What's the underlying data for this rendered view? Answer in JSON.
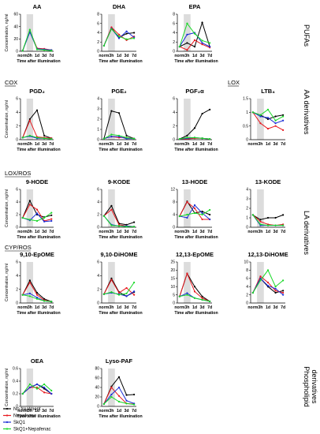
{
  "legend": [
    {
      "name": "No treatment",
      "color": "#000000"
    },
    {
      "name": "Nepafenac",
      "color": "#e8191f"
    },
    {
      "name": "SkQ1",
      "color": "#1c2fd6"
    },
    {
      "name": "SkQ1+Nepafenac",
      "color": "#19d928"
    }
  ],
  "section_labels": [
    "COX",
    "LOX",
    "LOX/ROS",
    "CYP/ROS"
  ],
  "group_labels": [
    "PUFAs",
    "AA derivatives",
    "LA derivatives",
    "Phospholipid derivatives"
  ],
  "chart_data": [
    {
      "type": "line",
      "title": "AA",
      "xlabel": "Time after illumination",
      "ylabel": "Concentration, ng/ml",
      "categories": [
        "norm",
        "3h",
        "1d",
        "3d",
        "7d"
      ],
      "ylim": [
        0,
        60
      ],
      "yticks": [
        0,
        20,
        40,
        60
      ],
      "shaded_category": "3h",
      "series": [
        {
          "name": "No treatment",
          "values": [
            1,
            33,
            4,
            3,
            2
          ]
        },
        {
          "name": "Nepafenac",
          "values": [
            1,
            33,
            5,
            4,
            2
          ]
        },
        {
          "name": "SkQ1",
          "values": [
            1,
            31,
            4,
            3,
            2
          ]
        },
        {
          "name": "SkQ1+Nepafenac",
          "values": [
            1,
            35,
            3,
            2,
            1
          ]
        }
      ]
    },
    {
      "type": "line",
      "title": "DHA",
      "xlabel": "Time after illumination",
      "ylabel": "",
      "categories": [
        "norm",
        "3h",
        "1d",
        "3d",
        "7d"
      ],
      "ylim": [
        0,
        8
      ],
      "yticks": [
        0,
        2,
        4,
        6,
        8
      ],
      "shaded_category": "3h",
      "series": [
        {
          "name": "No treatment",
          "values": [
            1.2,
            5.0,
            3.0,
            3.8,
            4.0
          ]
        },
        {
          "name": "Nepafenac",
          "values": [
            1.2,
            5.2,
            3.6,
            2.4,
            3.2
          ]
        },
        {
          "name": "SkQ1",
          "values": [
            1.2,
            4.9,
            2.8,
            4.3,
            3.0
          ]
        },
        {
          "name": "SkQ1+Nepafenac",
          "values": [
            1.2,
            4.8,
            3.2,
            2.6,
            2.8
          ]
        }
      ]
    },
    {
      "type": "line",
      "title": "EPA",
      "xlabel": "Time after illumination",
      "ylabel": "",
      "categories": [
        "norm",
        "3h",
        "1d",
        "3d",
        "7d"
      ],
      "ylim": [
        0,
        8
      ],
      "yticks": [
        0,
        2,
        4,
        6,
        8
      ],
      "shaded_category": "3h",
      "series": [
        {
          "name": "No treatment",
          "values": [
            1.0,
            1.8,
            1.0,
            6.2,
            1.0
          ]
        },
        {
          "name": "Nepafenac",
          "values": [
            1.0,
            0.3,
            2.4,
            1.5,
            0.8
          ]
        },
        {
          "name": "SkQ1",
          "values": [
            1.0,
            3.6,
            4.0,
            1.8,
            1.0
          ]
        },
        {
          "name": "SkQ1+Nepafenac",
          "values": [
            1.0,
            6.0,
            3.8,
            2.3,
            1.8
          ]
        }
      ]
    },
    {
      "type": "line",
      "title": "PGD₂",
      "xlabel": "Time after illumination",
      "ylabel": "Concentration, ng/ml",
      "categories": [
        "norm",
        "3h",
        "1d",
        "3d",
        "7d"
      ],
      "ylim": [
        0,
        6
      ],
      "yticks": [
        0,
        2,
        4,
        6
      ],
      "shaded_category": "3h",
      "series": [
        {
          "name": "No treatment",
          "values": [
            0.3,
            3.0,
            4.3,
            0.6,
            0.2
          ]
        },
        {
          "name": "Nepafenac",
          "values": [
            0.3,
            2.8,
            0.4,
            0.3,
            0.2
          ]
        },
        {
          "name": "SkQ1",
          "values": [
            0.3,
            0.5,
            0.2,
            0.2,
            0.1
          ]
        },
        {
          "name": "SkQ1+Nepafenac",
          "values": [
            0.3,
            0.6,
            0.3,
            0.2,
            0.1
          ]
        }
      ]
    },
    {
      "type": "line",
      "title": "PGE₂",
      "xlabel": "Time after illumination",
      "ylabel": "",
      "categories": [
        "norm",
        "3h",
        "1d",
        "3d",
        "7d"
      ],
      "ylim": [
        0,
        4
      ],
      "yticks": [
        0,
        1,
        2,
        3,
        4
      ],
      "shaded_category": "3h",
      "series": [
        {
          "name": "No treatment",
          "values": [
            0.1,
            2.8,
            2.6,
            0.4,
            0.1
          ]
        },
        {
          "name": "Nepafenac",
          "values": [
            0.1,
            0.3,
            0.2,
            0.2,
            0.1
          ]
        },
        {
          "name": "SkQ1",
          "values": [
            0.1,
            0.3,
            0.3,
            0.1,
            0.1
          ]
        },
        {
          "name": "SkQ1+Nepafenac",
          "values": [
            0.1,
            0.5,
            0.4,
            0.2,
            0.1
          ]
        }
      ]
    },
    {
      "type": "line",
      "title": "PGF₂α",
      "xlabel": "Time after illumination",
      "ylabel": "",
      "categories": [
        "norm",
        "3h",
        "1d",
        "3d",
        "7d"
      ],
      "ylim": [
        0,
        6
      ],
      "yticks": [
        0,
        2,
        4,
        6
      ],
      "shaded_category": "3h",
      "series": [
        {
          "name": "No treatment",
          "values": [
            0.1,
            0.6,
            1.7,
            3.8,
            4.4
          ]
        },
        {
          "name": "Nepafenac",
          "values": [
            0.1,
            0.1,
            0.2,
            0.2,
            0.1
          ]
        },
        {
          "name": "SkQ1",
          "values": [
            0.1,
            0.2,
            0.3,
            0.2,
            0.1
          ]
        },
        {
          "name": "SkQ1+Nepafenac",
          "values": [
            0.1,
            0.3,
            0.3,
            0.2,
            0.1
          ]
        }
      ]
    },
    {
      "type": "line",
      "title": "LTB₄",
      "xlabel": "",
      "ylabel": "",
      "categories": [
        "norm",
        "3h",
        "1d",
        "3d",
        "7d"
      ],
      "ylim": [
        0,
        1.5
      ],
      "yticks": [
        0,
        0.5,
        1.0,
        1.5
      ],
      "shaded_category": "3h",
      "series": [
        {
          "name": "No treatment",
          "values": [
            1.0,
            0.9,
            0.75,
            0.85,
            0.9
          ]
        },
        {
          "name": "Nepafenac",
          "values": [
            1.0,
            0.6,
            0.4,
            0.5,
            0.35
          ]
        },
        {
          "name": "SkQ1",
          "values": [
            1.0,
            0.85,
            0.8,
            0.6,
            0.7
          ]
        },
        {
          "name": "SkQ1+Nepafenac",
          "values": [
            1.0,
            0.9,
            1.1,
            0.7,
            0.85
          ]
        }
      ]
    },
    {
      "type": "line",
      "title": "9-HODE",
      "xlabel": "Time after illumination",
      "ylabel": "Concentration, ng/ml",
      "categories": [
        "norm",
        "3h",
        "1d",
        "3d",
        "7d"
      ],
      "ylim": [
        0,
        6
      ],
      "yticks": [
        0,
        2,
        4,
        6
      ],
      "shaded_category": "3h",
      "series": [
        {
          "name": "No treatment",
          "values": [
            1.5,
            4.2,
            2.0,
            1.6,
            1.9
          ]
        },
        {
          "name": "Nepafenac",
          "values": [
            1.5,
            3.6,
            2.8,
            1.0,
            1.3
          ]
        },
        {
          "name": "SkQ1",
          "values": [
            1.5,
            1.1,
            2.2,
            0.9,
            1.0
          ]
        },
        {
          "name": "SkQ1+Nepafenac",
          "values": [
            1.5,
            1.2,
            1.0,
            1.5,
            2.3
          ]
        }
      ]
    },
    {
      "type": "line",
      "title": "9-KODE",
      "xlabel": "Time after illumination",
      "ylabel": "",
      "categories": [
        "norm",
        "3h",
        "1d",
        "3d",
        "7d"
      ],
      "ylim": [
        0,
        6
      ],
      "yticks": [
        0,
        2,
        4,
        6
      ],
      "shaded_category": "3h",
      "series": [
        {
          "name": "No treatment",
          "values": [
            1.8,
            3.4,
            0.6,
            0.4,
            0.8
          ]
        },
        {
          "name": "Nepafenac",
          "values": [
            1.8,
            2.8,
            0.4,
            0.2,
            0.1
          ]
        },
        {
          "name": "SkQ1",
          "values": [
            1.8,
            0.4,
            0.2,
            0.2,
            0.1
          ]
        },
        {
          "name": "SkQ1+Nepafenac",
          "values": [
            1.8,
            0.3,
            0.2,
            0.1,
            0.1
          ]
        }
      ]
    },
    {
      "type": "line",
      "title": "13-HODE",
      "xlabel": "Time after illumination",
      "ylabel": "",
      "categories": [
        "norm",
        "3h",
        "1d",
        "3d",
        "7d"
      ],
      "ylim": [
        0,
        12
      ],
      "yticks": [
        0,
        4,
        8,
        12
      ],
      "shaded_category": "3h",
      "series": [
        {
          "name": "No treatment",
          "values": [
            3.5,
            8.2,
            4.5,
            5.0,
            4.0
          ]
        },
        {
          "name": "Nepafenac",
          "values": [
            3.5,
            8.0,
            6.0,
            2.5,
            2.5
          ]
        },
        {
          "name": "SkQ1",
          "values": [
            3.5,
            3.0,
            7.0,
            4.5,
            2.5
          ]
        },
        {
          "name": "SkQ1+Nepafenac",
          "values": [
            3.5,
            4.0,
            4.5,
            4.0,
            5.5
          ]
        }
      ]
    },
    {
      "type": "line",
      "title": "13-KODE",
      "xlabel": "",
      "ylabel": "",
      "categories": [
        "norm",
        "3h",
        "1d",
        "3d",
        "7d"
      ],
      "ylim": [
        0,
        4
      ],
      "yticks": [
        0,
        1,
        2,
        3,
        4
      ],
      "shaded_category": "3h",
      "series": [
        {
          "name": "No treatment",
          "values": [
            1.3,
            0.8,
            1.0,
            1.0,
            1.3
          ]
        },
        {
          "name": "Nepafenac",
          "values": [
            1.3,
            0.6,
            0.3,
            0.2,
            0.3
          ]
        },
        {
          "name": "SkQ1",
          "values": [
            1.3,
            0.2,
            0.2,
            0.2,
            0.2
          ]
        },
        {
          "name": "SkQ1+Nepafenac",
          "values": [
            1.3,
            0.3,
            0.2,
            0.2,
            0.2
          ]
        }
      ]
    },
    {
      "type": "line",
      "title": "9,10-EpOME",
      "xlabel": "Time after illumination",
      "ylabel": "Concentration, ng/ml",
      "categories": [
        "norm",
        "3h",
        "1d",
        "3d",
        "7d"
      ],
      "ylim": [
        0,
        6
      ],
      "yticks": [
        0,
        2,
        4,
        6
      ],
      "shaded_category": "3h",
      "series": [
        {
          "name": "No treatment",
          "values": [
            1.2,
            3.3,
            1.5,
            0.6,
            0.2
          ]
        },
        {
          "name": "Nepafenac",
          "values": [
            1.2,
            3.0,
            1.2,
            0.4,
            0.2
          ]
        },
        {
          "name": "SkQ1",
          "values": [
            1.2,
            1.4,
            0.8,
            0.3,
            0.2
          ]
        },
        {
          "name": "SkQ1+Nepafenac",
          "values": [
            1.2,
            1.0,
            0.6,
            0.3,
            0.2
          ]
        }
      ]
    },
    {
      "type": "line",
      "title": "9,10-DiHOME",
      "xlabel": "Time after illumination",
      "ylabel": "",
      "categories": [
        "norm",
        "3h",
        "1d",
        "3d",
        "7d"
      ],
      "ylim": [
        0,
        6
      ],
      "yticks": [
        0,
        2,
        4,
        6
      ],
      "shaded_category": "3h",
      "series": [
        {
          "name": "No treatment",
          "values": [
            1.3,
            3.6,
            1.6,
            1.0,
            1.6
          ]
        },
        {
          "name": "Nepafenac",
          "values": [
            1.3,
            3.4,
            1.5,
            2.2,
            1.2
          ]
        },
        {
          "name": "SkQ1",
          "values": [
            1.3,
            1.5,
            1.3,
            1.0,
            1.7
          ]
        },
        {
          "name": "SkQ1+Nepafenac",
          "values": [
            1.3,
            1.6,
            1.2,
            1.4,
            3.0
          ]
        }
      ]
    },
    {
      "type": "line",
      "title": "12,13-EpOME",
      "xlabel": "Time after illumination",
      "ylabel": "",
      "categories": [
        "norm",
        "3h",
        "1d",
        "3d",
        "7d"
      ],
      "ylim": [
        0,
        25
      ],
      "yticks": [
        0,
        5,
        10,
        15,
        20,
        25
      ],
      "shaded_category": "3h",
      "series": [
        {
          "name": "No treatment",
          "values": [
            4,
            18,
            10,
            4,
            1
          ]
        },
        {
          "name": "Nepafenac",
          "values": [
            4,
            18,
            7,
            3,
            1
          ]
        },
        {
          "name": "SkQ1",
          "values": [
            4,
            6,
            3,
            2,
            1
          ]
        },
        {
          "name": "SkQ1+Nepafenac",
          "values": [
            4,
            5,
            3,
            2,
            1
          ]
        }
      ]
    },
    {
      "type": "line",
      "title": "12,13-DiHOME",
      "xlabel": "",
      "ylabel": "",
      "categories": [
        "norm",
        "3h",
        "1d",
        "3d",
        "7d"
      ],
      "ylim": [
        0,
        10
      ],
      "yticks": [
        0,
        2,
        4,
        6,
        8,
        10
      ],
      "shaded_category": "3h",
      "series": [
        {
          "name": "No treatment",
          "values": [
            2.5,
            6.0,
            4.0,
            2.5,
            3.0
          ]
        },
        {
          "name": "Nepafenac",
          "values": [
            2.5,
            6.5,
            5.0,
            3.0,
            2.5
          ]
        },
        {
          "name": "SkQ1",
          "values": [
            2.5,
            6.0,
            4.2,
            3.5,
            2.0
          ]
        },
        {
          "name": "SkQ1+Nepafenac",
          "values": [
            2.5,
            5.5,
            8.0,
            4.0,
            5.5
          ]
        }
      ]
    },
    {
      "type": "line",
      "title": "OEA",
      "xlabel": "Time after illumination",
      "ylabel": "Concentration, ng/ml",
      "categories": [
        "norm",
        "3h",
        "1d",
        "3d",
        "7d"
      ],
      "ylim": [
        0,
        0.6
      ],
      "yticks": [
        0,
        0.2,
        0.4,
        0.6
      ],
      "shaded_category": "3h",
      "series": [
        {
          "name": "No treatment",
          "values": [
            0.2,
            0.3,
            0.35,
            0.28,
            0.2
          ]
        },
        {
          "name": "Nepafenac",
          "values": [
            0.2,
            0.3,
            0.3,
            0.22,
            0.2
          ]
        },
        {
          "name": "SkQ1",
          "values": [
            0.2,
            0.3,
            0.35,
            0.3,
            0.2
          ]
        },
        {
          "name": "SkQ1+Nepafenac",
          "values": [
            0.2,
            0.35,
            0.28,
            0.35,
            0.25
          ]
        }
      ]
    },
    {
      "type": "line",
      "title": "Lyso-PAF",
      "xlabel": "Time after illumination",
      "ylabel": "",
      "categories": [
        "norm",
        "3h",
        "1d",
        "3d",
        "7d"
      ],
      "ylim": [
        0,
        80
      ],
      "yticks": [
        0,
        20,
        40,
        60,
        80
      ],
      "shaded_category": "3h",
      "series": [
        {
          "name": "No treatment",
          "values": [
            5,
            42,
            62,
            24,
            25
          ]
        },
        {
          "name": "Nepafenac",
          "values": [
            5,
            40,
            22,
            6,
            5
          ]
        },
        {
          "name": "SkQ1",
          "values": [
            5,
            25,
            40,
            12,
            6
          ]
        },
        {
          "name": "SkQ1+Nepafenac",
          "values": [
            5,
            20,
            10,
            6,
            4
          ]
        }
      ]
    }
  ]
}
